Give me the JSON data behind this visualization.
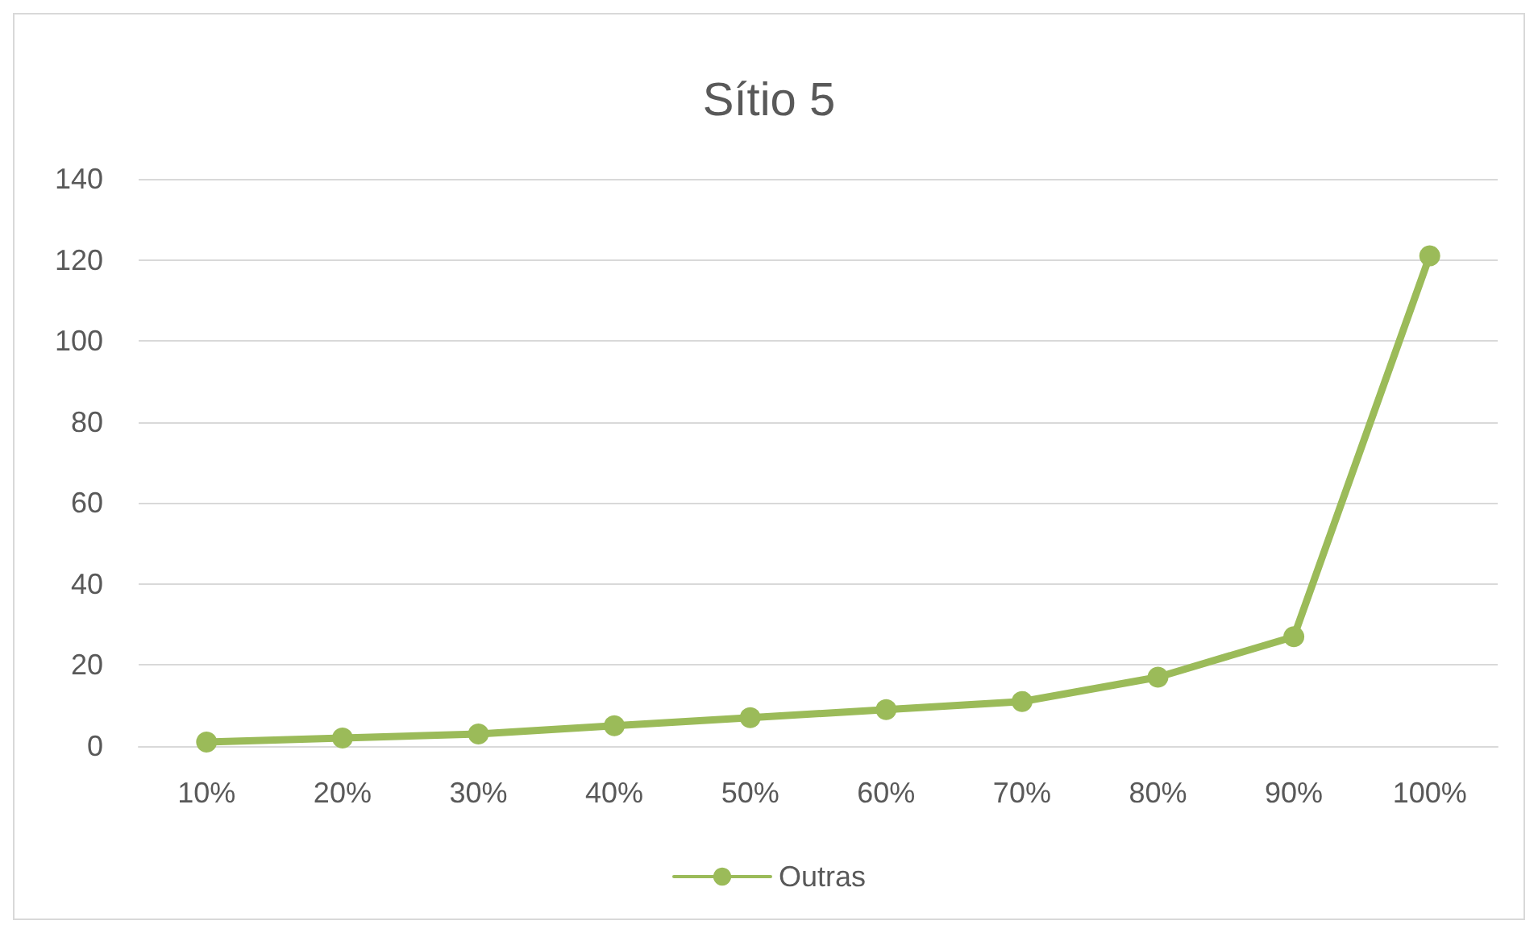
{
  "chart_data": {
    "type": "line",
    "title": "Sítio 5",
    "categories": [
      "10%",
      "20%",
      "30%",
      "40%",
      "50%",
      "60%",
      "70%",
      "80%",
      "90%",
      "100%"
    ],
    "series": [
      {
        "name": "Outras",
        "color": "#9bbb59",
        "values": [
          1,
          2,
          3,
          5,
          7,
          9,
          11,
          17,
          27,
          121
        ]
      }
    ],
    "ylim": [
      0,
      140
    ],
    "yticks": [
      0,
      20,
      40,
      60,
      80,
      100,
      120,
      140
    ],
    "grid": "y",
    "legend": "bottom",
    "marker": "circle",
    "line_style": "solid"
  }
}
